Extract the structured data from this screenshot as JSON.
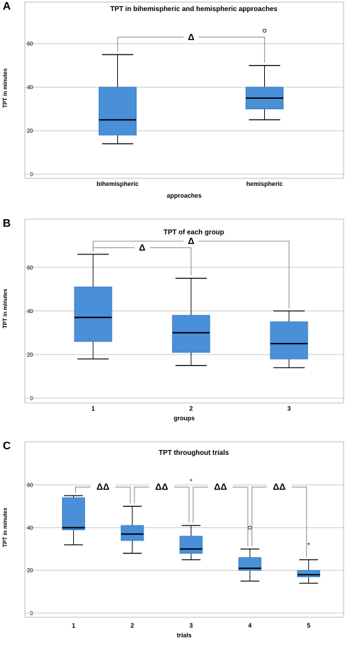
{
  "chart_data": [
    {
      "panel": "A",
      "type": "box",
      "title": "TPT in bihemispheric and hemispheric approaches",
      "xlabel": "approaches",
      "ylabel": "TPT in minutes",
      "ylim": [
        0,
        75
      ],
      "yticks": [
        0,
        20,
        40,
        60
      ],
      "grid": true,
      "color": "#4a90d9",
      "categories": [
        "bihemispheric",
        "hemispheric"
      ],
      "boxes": [
        {
          "min": 14,
          "q1": 18,
          "median": 25,
          "q3": 40,
          "max": 55,
          "outliers": [],
          "extremes": []
        },
        {
          "min": 25,
          "q1": 30,
          "median": 35,
          "q3": 40,
          "max": 50,
          "outliers": [
            66
          ],
          "extremes": []
        }
      ],
      "brackets": [
        {
          "from": 0,
          "to": 1,
          "level": 63,
          "label": "Δ"
        }
      ]
    },
    {
      "panel": "B",
      "type": "box",
      "title": "TPT of each group",
      "xlabel": "groups",
      "ylabel": "TPT in minutes",
      "ylim": [
        0,
        78
      ],
      "yticks": [
        0,
        20,
        40,
        60
      ],
      "grid": true,
      "color": "#4a90d9",
      "categories": [
        "1",
        "2",
        "3"
      ],
      "boxes": [
        {
          "min": 18,
          "q1": 26,
          "median": 37,
          "q3": 51,
          "max": 66,
          "outliers": [],
          "extremes": []
        },
        {
          "min": 15,
          "q1": 21,
          "median": 30,
          "q3": 38,
          "max": 55,
          "outliers": [],
          "extremes": []
        },
        {
          "min": 14,
          "q1": 18,
          "median": 25,
          "q3": 35,
          "max": 40,
          "outliers": [],
          "extremes": []
        }
      ],
      "brackets": [
        {
          "from": 0,
          "to": 1,
          "level": 69,
          "label": "Δ"
        },
        {
          "from": 0,
          "to": 2,
          "level": 72,
          "label": "Δ"
        }
      ]
    },
    {
      "panel": "C",
      "type": "box",
      "title": "TPT throughout trials",
      "xlabel": "trials",
      "ylabel": "TPT in minutes",
      "ylim": [
        0,
        77
      ],
      "yticks": [
        0,
        20,
        40,
        60
      ],
      "grid": true,
      "color": "#4a90d9",
      "categories": [
        "1",
        "2",
        "3",
        "4",
        "5"
      ],
      "boxes": [
        {
          "min": 32,
          "q1": 39,
          "median": 40,
          "q3": 54,
          "max": 55,
          "outliers": [],
          "extremes": []
        },
        {
          "min": 28,
          "q1": 34,
          "median": 37,
          "q3": 41,
          "max": 50,
          "outliers": [],
          "extremes": []
        },
        {
          "min": 25,
          "q1": 28,
          "median": 30,
          "q3": 36,
          "max": 41,
          "outliers": [],
          "extremes": [
            62
          ]
        },
        {
          "min": 15,
          "q1": 20,
          "median": 21,
          "q3": 26,
          "max": 30,
          "outliers": [
            40
          ],
          "extremes": []
        },
        {
          "min": 14,
          "q1": 17,
          "median": 18,
          "q3": 20,
          "max": 25,
          "outliers": [],
          "extremes": [
            32
          ]
        }
      ],
      "brackets": [
        {
          "from": 0,
          "to": 1,
          "level": 59,
          "label": "ΔΔ"
        },
        {
          "from": 1,
          "to": 2,
          "level": 59,
          "label": "ΔΔ"
        },
        {
          "from": 2,
          "to": 3,
          "level": 59,
          "label": "ΔΔ"
        },
        {
          "from": 3,
          "to": 4,
          "level": 59,
          "label": "ΔΔ"
        }
      ]
    }
  ]
}
